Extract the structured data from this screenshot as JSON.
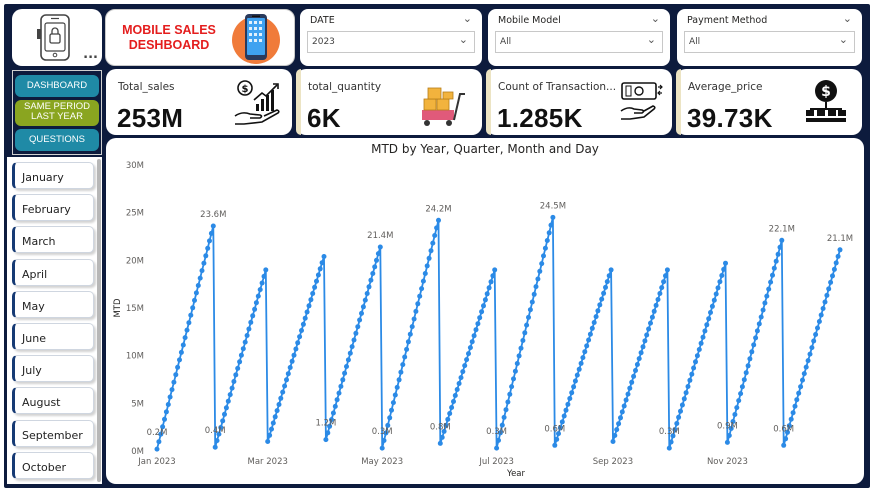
{
  "header": {
    "title_line1": "MOBILE SALES",
    "title_line2": "DESHBOARD",
    "more_dots": "..."
  },
  "slicers": {
    "date": {
      "label": "DATE",
      "value": "2023"
    },
    "model": {
      "label": "Mobile Model",
      "value": "All"
    },
    "payment": {
      "label": "Payment Method",
      "value": "All"
    }
  },
  "nav": {
    "dashboard": "DASHBOARD",
    "same_period_1": "SAME PERIOD",
    "same_period_2": "LAST YEAR",
    "questions": "QUESTIONS"
  },
  "kpis": [
    {
      "label": "Total_sales",
      "value": "253M"
    },
    {
      "label": "total_quantity",
      "value": "6K"
    },
    {
      "label": "Count of Transaction...",
      "value": "1.285K"
    },
    {
      "label": "Average_price",
      "value": "39.73K"
    }
  ],
  "months": [
    "January",
    "February",
    "March",
    "April",
    "May",
    "June",
    "July",
    "August",
    "September",
    "October"
  ],
  "colors": {
    "navy": "#0d1b3d",
    "line": "#2b8ae6",
    "title_red": "#e41e1e",
    "nav_teal": "#1f8aa6",
    "nav_olive": "#8aa520"
  },
  "chart_data": {
    "type": "line",
    "title": "MTD by Year, Quarter, Month and Day",
    "xlabel": "Year",
    "ylabel": "MTD",
    "ylim": [
      0,
      30
    ],
    "y_unit": "M",
    "y_ticks": [
      "0M",
      "5M",
      "10M",
      "15M",
      "20M",
      "25M",
      "30M"
    ],
    "x_ticks": [
      "Jan 2023",
      "Mar 2023",
      "May 2023",
      "Jul 2023",
      "Sep 2023",
      "Nov 2023"
    ],
    "grid": false,
    "series": [
      {
        "months": [
          {
            "month": "Jan",
            "start": 0.2,
            "end": 23.6
          },
          {
            "month": "Feb",
            "start": 0.4,
            "end": 19.0
          },
          {
            "month": "Mar",
            "start": 1.0,
            "end": 20.4
          },
          {
            "month": "Apr",
            "start": 1.2,
            "end": 21.4
          },
          {
            "month": "May",
            "start": 0.3,
            "end": 24.2
          },
          {
            "month": "Jun",
            "start": 0.8,
            "end": 19.0
          },
          {
            "month": "Jul",
            "start": 0.3,
            "end": 24.5
          },
          {
            "month": "Aug",
            "start": 0.6,
            "end": 19.0
          },
          {
            "month": "Sep",
            "start": 1.0,
            "end": 19.0
          },
          {
            "month": "Oct",
            "start": 0.3,
            "end": 19.7
          },
          {
            "month": "Nov",
            "start": 0.9,
            "end": 22.1
          },
          {
            "month": "Dec",
            "start": 0.6,
            "end": 21.1
          }
        ]
      }
    ],
    "data_labels": [
      {
        "month_index": 0,
        "at": "start",
        "text": "0.2M"
      },
      {
        "month_index": 0,
        "at": "end",
        "text": "23.6M"
      },
      {
        "month_index": 1,
        "at": "start",
        "text": "0.4M"
      },
      {
        "month_index": 3,
        "at": "start",
        "text": "1.2M"
      },
      {
        "month_index": 3,
        "at": "end",
        "text": "21.4M"
      },
      {
        "month_index": 4,
        "at": "start",
        "text": "0.3M"
      },
      {
        "month_index": 4,
        "at": "end",
        "text": "24.2M"
      },
      {
        "month_index": 5,
        "at": "start",
        "text": "0.8M"
      },
      {
        "month_index": 6,
        "at": "start",
        "text": "0.3M"
      },
      {
        "month_index": 6,
        "at": "end",
        "text": "24.5M"
      },
      {
        "month_index": 7,
        "at": "start",
        "text": "0.6M"
      },
      {
        "month_index": 9,
        "at": "start",
        "text": "0.3M"
      },
      {
        "month_index": 10,
        "at": "start",
        "text": "0.9M"
      },
      {
        "month_index": 10,
        "at": "end",
        "text": "22.1M"
      },
      {
        "month_index": 11,
        "at": "start",
        "text": "0.6M"
      },
      {
        "month_index": 11,
        "at": "end",
        "text": "21.1M"
      }
    ]
  }
}
